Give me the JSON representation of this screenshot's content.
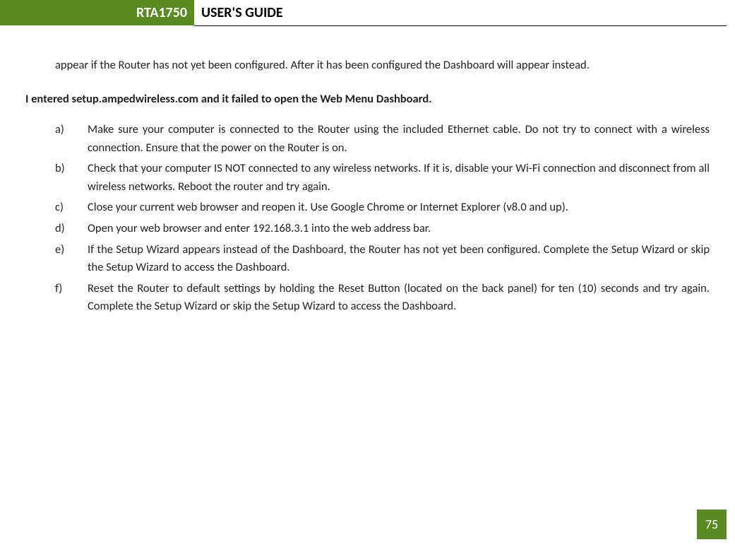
{
  "header": {
    "product": "RTA1750",
    "title": "USER'S GUIDE"
  },
  "intro": "appear if the Router has not yet been configured.  After it has been configured the Dashboard will appear instead.",
  "heading": "I entered setup.ampedwireless.com and it failed to open the Web Menu Dashboard.",
  "items": [
    {
      "marker": "a)",
      "text": "Make sure your computer is connected to the Router using the included Ethernet cable. Do not try to connect with a wireless connection. Ensure that the power on the Router is on."
    },
    {
      "marker": "b)",
      "text": "Check that your computer IS NOT connected to any wireless networks. If it is, disable your Wi-Fi connection and disconnect from all wireless networks. Reboot the router and try again."
    },
    {
      "marker": "c)",
      "text": "Close your current web browser and reopen it.  Use Google Chrome or Internet Explorer (v8.0 and up)."
    },
    {
      "marker": "d)",
      "text": "Open your web browser and enter 192.168.3.1 into the web address bar."
    },
    {
      "marker": "e)",
      "text": "If the Setup Wizard appears instead of the Dashboard, the Router has not yet been configured. Complete the Setup Wizard or skip the Setup Wizard to access the Dashboard."
    },
    {
      "marker": "f)",
      "text": "Reset the Router to default settings by holding the Reset Button (located on the back panel) for ten (10) seconds and try again.  Complete the Setup Wizard or skip the Setup Wizard to access the Dashboard."
    }
  ],
  "page_number": "75",
  "colors": {
    "accent": "#5a8a22",
    "text": "#222222",
    "bg": "#ffffff"
  }
}
